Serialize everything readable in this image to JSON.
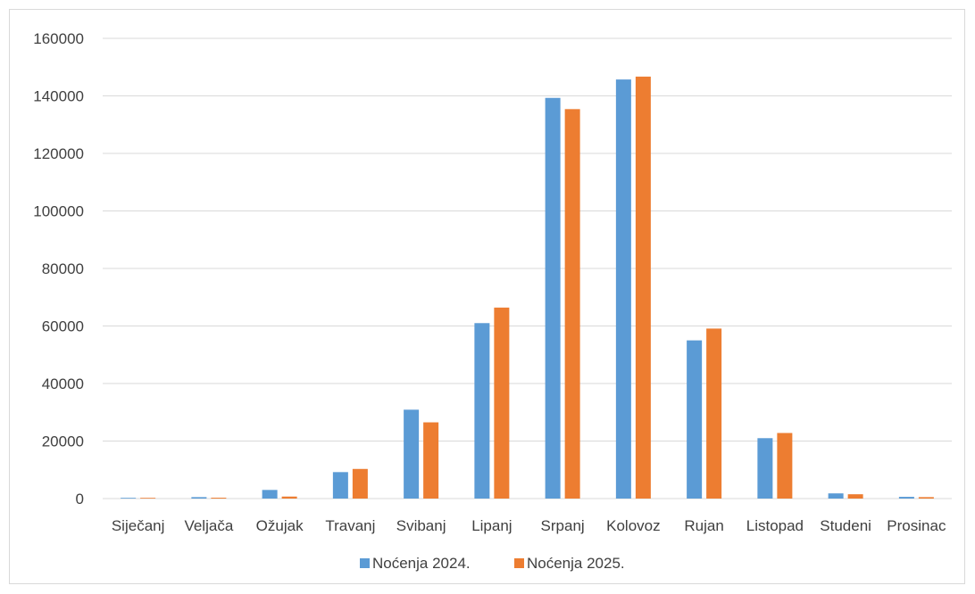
{
  "chart_data": {
    "type": "bar",
    "categories": [
      "Siječanj",
      "Veljača",
      "Ožujak",
      "Travanj",
      "Svibanj",
      "Lipanj",
      "Srpanj",
      "Kolovoz",
      "Rujan",
      "Listopad",
      "Studeni",
      "Prosinac"
    ],
    "series": [
      {
        "name": "Noćenja 2024.",
        "color": "#5B9BD5",
        "values": [
          250,
          500,
          3000,
          9200,
          30900,
          61000,
          139300,
          145700,
          55000,
          21000,
          1800,
          600
        ]
      },
      {
        "name": "Noćenja 2025.",
        "color": "#ED7D31",
        "values": [
          200,
          300,
          700,
          10300,
          26500,
          66400,
          135400,
          146700,
          59100,
          22800,
          1500,
          500
        ]
      }
    ],
    "ylim": [
      0,
      160000
    ],
    "yticks": [
      "0",
      "20000",
      "40000",
      "60000",
      "80000",
      "100000",
      "120000",
      "140000",
      "160000"
    ],
    "grid": true,
    "gridline_color": "#d9d9d9",
    "legend_position": "bottom"
  }
}
